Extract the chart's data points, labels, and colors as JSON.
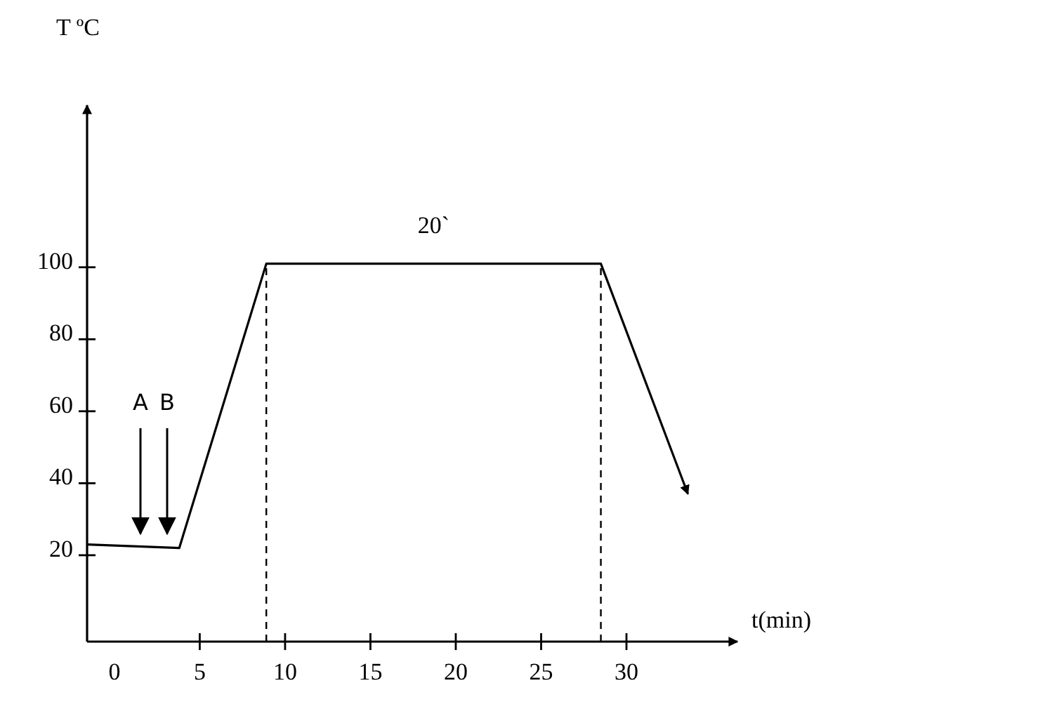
{
  "chart_data": {
    "type": "line",
    "xlabel": "t(min)",
    "ylabel": "T ºC",
    "xlim": [
      -1.6,
      36.5
    ],
    "ylim": [
      -4,
      145
    ],
    "xticks": [
      0,
      5,
      10,
      15,
      20,
      25,
      30
    ],
    "yticks": [
      20,
      40,
      60,
      80,
      100
    ],
    "grid": false,
    "marker": "none",
    "line_style": "solid",
    "series": [
      {
        "color": "#000000",
        "x": [
          -1.6,
          3.8,
          8.9,
          28.5,
          33.6
        ],
        "values": [
          23,
          22,
          101,
          101,
          37
        ]
      }
    ],
    "ref_lines": [
      {
        "axis": "x",
        "value": 8.9,
        "line_style": "dashed",
        "color": "#000000"
      },
      {
        "axis": "x",
        "value": 28.5,
        "line_style": "dashed",
        "color": "#000000"
      }
    ],
    "annotations": [
      {
        "text": "20`",
        "x": 18.7,
        "y": 101
      },
      "A",
      "B"
    ]
  }
}
